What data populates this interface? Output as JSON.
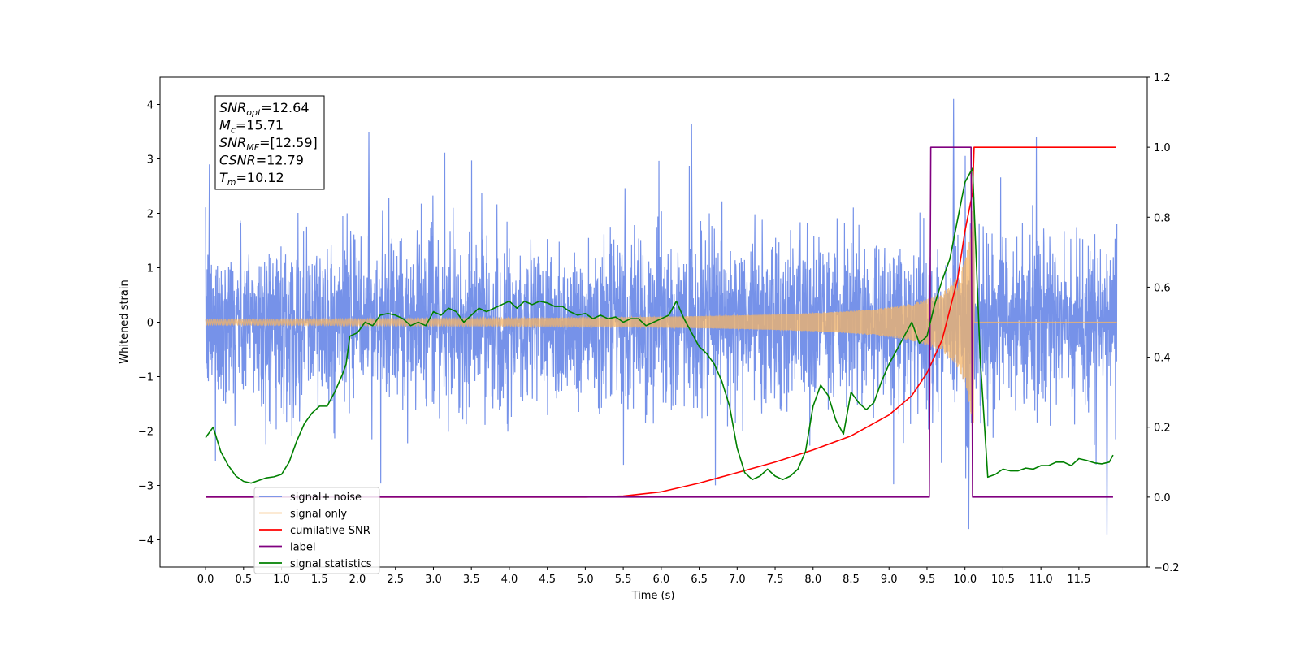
{
  "chart_data": {
    "type": "line",
    "xlabel": "Time (s)",
    "ylabel": "Whitened strain",
    "ylabel_right": "",
    "xlim": [
      -0.6,
      12.4
    ],
    "ylim": [
      -4.5,
      4.5
    ],
    "ylim_right": [
      -0.2,
      1.2
    ],
    "x_ticks": [
      "0.0",
      "0.5",
      "1.0",
      "1.5",
      "2.0",
      "2.5",
      "3.0",
      "3.5",
      "4.0",
      "4.5",
      "5.0",
      "5.5",
      "6.0",
      "6.5",
      "7.0",
      "7.5",
      "8.0",
      "8.5",
      "9.0",
      "9.5",
      "10.0",
      "10.5",
      "11.0",
      "11.5"
    ],
    "y_ticks": [
      "−4",
      "−3",
      "−2",
      "−1",
      "0",
      "1",
      "2",
      "3",
      "4"
    ],
    "y_ticks_right": [
      "−0.2",
      "0.0",
      "0.2",
      "0.4",
      "0.6",
      "0.8",
      "1.0",
      "1.2"
    ],
    "grid": false,
    "legend_position": "lower-left",
    "annotation": {
      "lines": [
        {
          "symbol": "SNR",
          "sub": "opt",
          "value": "=12.64"
        },
        {
          "symbol": "M",
          "sub": "c",
          "value": "=15.71"
        },
        {
          "symbol": "SNR",
          "sub": "MF",
          "value": "=[12.59]"
        },
        {
          "symbol": "CSNR",
          "sub": "",
          "value": "=12.79"
        },
        {
          "symbol": "T",
          "sub": "m",
          "value": "=10.12"
        }
      ]
    },
    "series": [
      {
        "name": "signal+ noise",
        "color": "#6f8ce8",
        "axis": "left",
        "description": "whitened noise plus signal, approx. symmetric band about 0 with amplitude ~1.5 and peaks up to ~4.1 near x=9.85",
        "x_range": [
          0.0,
          12.0
        ],
        "amplitude_band": 1.5,
        "peaks": [
          [
            0.05,
            2.9
          ],
          [
            2.15,
            3.5
          ],
          [
            6.4,
            3.65
          ],
          [
            9.85,
            4.1
          ],
          [
            10.05,
            -3.8
          ],
          [
            11.87,
            -3.9
          ]
        ]
      },
      {
        "name": "signal only",
        "color": "#f5b465",
        "axis": "left",
        "description": "chirp growing from 0 to ~±2.4 peak at merger time ~10.12 then ringdown",
        "x_range": [
          0.0,
          12.0
        ],
        "merger_time": 10.12,
        "peak_amplitude": 2.4
      },
      {
        "name": "cumilative SNR",
        "color": "#ff0000",
        "axis": "right",
        "x": [
          0.0,
          5.0,
          5.5,
          6.0,
          6.5,
          7.0,
          7.5,
          8.0,
          8.5,
          9.0,
          9.3,
          9.5,
          9.7,
          9.9,
          10.0,
          10.1,
          10.12,
          11.99
        ],
        "y": [
          0.0,
          0.0,
          0.003,
          0.015,
          0.04,
          0.07,
          0.1,
          0.135,
          0.175,
          0.235,
          0.29,
          0.355,
          0.45,
          0.62,
          0.76,
          0.87,
          1.0,
          1.0
        ]
      },
      {
        "name": "label",
        "color": "#800080",
        "axis": "right",
        "x": [
          0.0,
          9.53,
          9.55,
          10.08,
          10.1,
          11.95
        ],
        "y": [
          0.0,
          0.0,
          1.0,
          1.0,
          0.0,
          0.0
        ]
      },
      {
        "name": "signal statistics",
        "color": "#008000",
        "axis": "right",
        "x": [
          0.0,
          0.1,
          0.2,
          0.3,
          0.4,
          0.5,
          0.6,
          0.8,
          0.9,
          1.0,
          1.1,
          1.2,
          1.3,
          1.4,
          1.5,
          1.6,
          1.7,
          1.8,
          1.85,
          1.9,
          2.0,
          2.1,
          2.2,
          2.3,
          2.4,
          2.5,
          2.6,
          2.7,
          2.8,
          2.9,
          3.0,
          3.1,
          3.2,
          3.3,
          3.4,
          3.5,
          3.6,
          3.7,
          3.8,
          3.9,
          4.0,
          4.1,
          4.2,
          4.3,
          4.4,
          4.5,
          4.6,
          4.7,
          4.8,
          4.9,
          5.0,
          5.1,
          5.2,
          5.3,
          5.4,
          5.5,
          5.6,
          5.7,
          5.8,
          5.9,
          6.0,
          6.1,
          6.2,
          6.3,
          6.4,
          6.5,
          6.6,
          6.7,
          6.8,
          6.9,
          7.0,
          7.1,
          7.2,
          7.3,
          7.4,
          7.5,
          7.6,
          7.7,
          7.8,
          7.9,
          8.0,
          8.1,
          8.2,
          8.3,
          8.4,
          8.5,
          8.6,
          8.7,
          8.8,
          8.9,
          9.0,
          9.1,
          9.2,
          9.3,
          9.4,
          9.5,
          9.6,
          9.7,
          9.8,
          9.9,
          10.0,
          10.1,
          10.2,
          10.3,
          10.4,
          10.5,
          10.6,
          10.7,
          10.8,
          10.9,
          11.0,
          11.1,
          11.2,
          11.3,
          11.4,
          11.5,
          11.6,
          11.7,
          11.8,
          11.9,
          11.95
        ],
        "y": [
          0.17,
          0.2,
          0.13,
          0.09,
          0.06,
          0.045,
          0.04,
          0.055,
          0.058,
          0.065,
          0.1,
          0.16,
          0.21,
          0.24,
          0.26,
          0.26,
          0.3,
          0.35,
          0.38,
          0.46,
          0.47,
          0.5,
          0.49,
          0.52,
          0.525,
          0.52,
          0.51,
          0.49,
          0.5,
          0.49,
          0.53,
          0.52,
          0.54,
          0.53,
          0.5,
          0.52,
          0.54,
          0.53,
          0.54,
          0.55,
          0.56,
          0.54,
          0.56,
          0.55,
          0.56,
          0.555,
          0.545,
          0.545,
          0.53,
          0.52,
          0.525,
          0.51,
          0.52,
          0.51,
          0.515,
          0.5,
          0.51,
          0.51,
          0.49,
          0.5,
          0.51,
          0.52,
          0.56,
          0.51,
          0.47,
          0.43,
          0.41,
          0.38,
          0.33,
          0.26,
          0.14,
          0.07,
          0.05,
          0.06,
          0.08,
          0.06,
          0.05,
          0.06,
          0.08,
          0.13,
          0.26,
          0.32,
          0.29,
          0.22,
          0.18,
          0.3,
          0.27,
          0.25,
          0.27,
          0.33,
          0.38,
          0.42,
          0.46,
          0.5,
          0.44,
          0.46,
          0.55,
          0.62,
          0.68,
          0.79,
          0.9,
          0.94,
          0.4,
          0.057,
          0.065,
          0.08,
          0.075,
          0.075,
          0.083,
          0.08,
          0.09,
          0.09,
          0.1,
          0.1,
          0.09,
          0.11,
          0.105,
          0.098,
          0.095,
          0.1,
          0.12
        ]
      }
    ]
  }
}
